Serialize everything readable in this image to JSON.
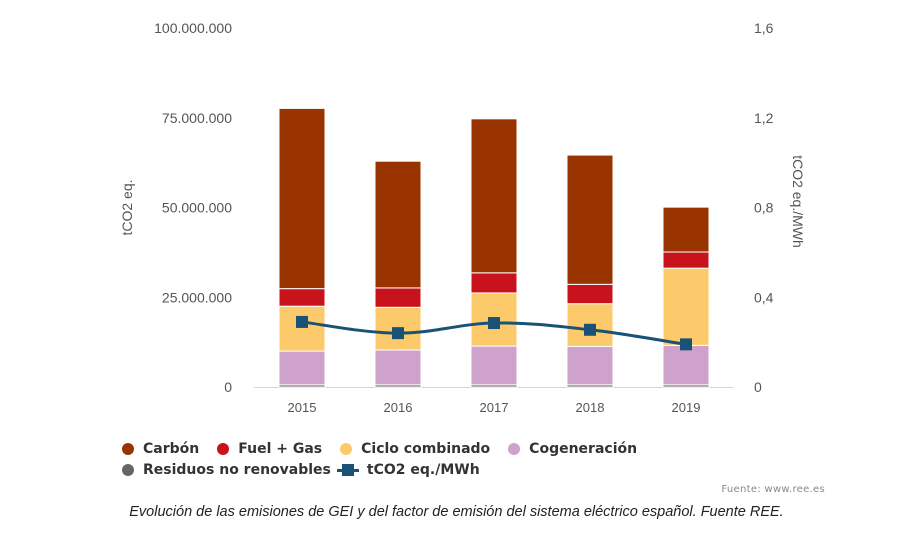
{
  "chart_data": {
    "type": "bar",
    "stacked": true,
    "categories": [
      "2015",
      "2016",
      "2017",
      "2018",
      "2019"
    ],
    "series": [
      {
        "name": "Residuos no renovables",
        "color": "#666666",
        "values": [
          600000,
          600000,
          600000,
          600000,
          600000
        ]
      },
      {
        "name": "Cogeneración",
        "color": "#cfa2cb",
        "values": [
          9400000,
          9700000,
          10800000,
          10700000,
          11000000
        ]
      },
      {
        "name": "Ciclo combinado",
        "color": "#fdca6b",
        "values": [
          12500000,
          11900000,
          14800000,
          11900000,
          21500000
        ]
      },
      {
        "name": "Fuel + Gas",
        "color": "#c8131d",
        "values": [
          4900000,
          5400000,
          5600000,
          5400000,
          4500000
        ]
      },
      {
        "name": "Carbón",
        "color": "#993300",
        "values": [
          50200000,
          35300000,
          42900000,
          36000000,
          12500000
        ]
      }
    ],
    "line_series": {
      "name": "tCO2 eq./MWh",
      "color": "#1a5276",
      "axis": "right",
      "values": [
        0.29,
        0.24,
        0.285,
        0.255,
        0.19
      ]
    },
    "ylabel": "tCO2 eq.",
    "y2label": "tCO2 eq./MWh",
    "ylim": [
      0,
      100000000
    ],
    "y2lim": [
      0,
      1.6
    ],
    "yticks": [
      "0",
      "25.000.000",
      "50.000.000",
      "75.000.000",
      "100.000.000"
    ],
    "y2ticks": [
      "0",
      "0,4",
      "0,8",
      "1,2",
      "1,6"
    ],
    "grid": false,
    "legend_position": "bottom-left"
  },
  "legend": {
    "items": [
      {
        "label": "Carbón",
        "color": "#993300",
        "shape": "dot"
      },
      {
        "label": "Fuel + Gas",
        "color": "#c8131d",
        "shape": "dot"
      },
      {
        "label": "Ciclo combinado",
        "color": "#fdca6b",
        "shape": "dot"
      },
      {
        "label": "Cogeneración",
        "color": "#cfa2cb",
        "shape": "dot"
      },
      {
        "label": "Residuos no renovables",
        "color": "#666666",
        "shape": "dot"
      },
      {
        "label": "tCO2 eq./MWh",
        "color": "#1a5276",
        "shape": "line"
      }
    ]
  },
  "source": "Fuente: www.ree.es",
  "caption": "Evolución de las emisiones de GEI y del factor de emisión del sistema eléctrico español. Fuente REE."
}
